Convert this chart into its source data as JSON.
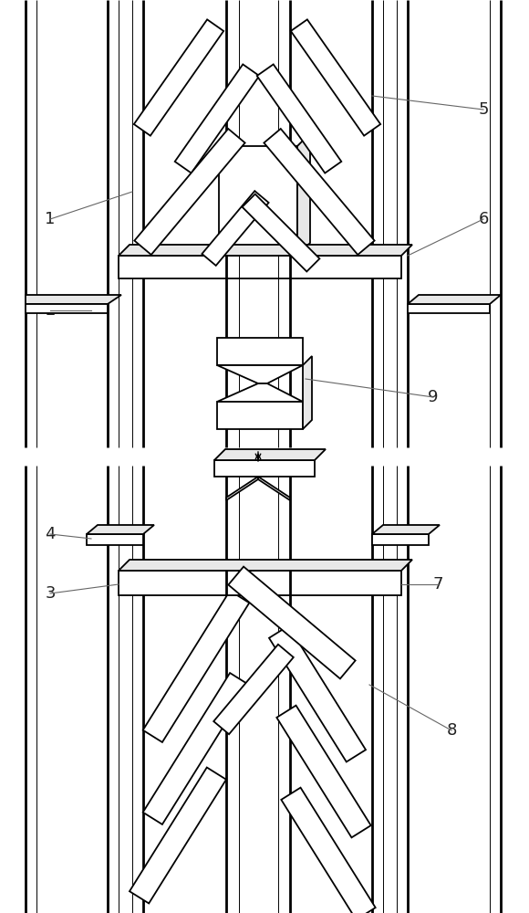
{
  "bg_color": "#ffffff",
  "lc": "#000000",
  "lw_thin": 0.7,
  "lw_med": 1.3,
  "lw_thick": 2.0,
  "label_fs": 13,
  "label_color": "#222222",
  "leader_color": "#666666"
}
